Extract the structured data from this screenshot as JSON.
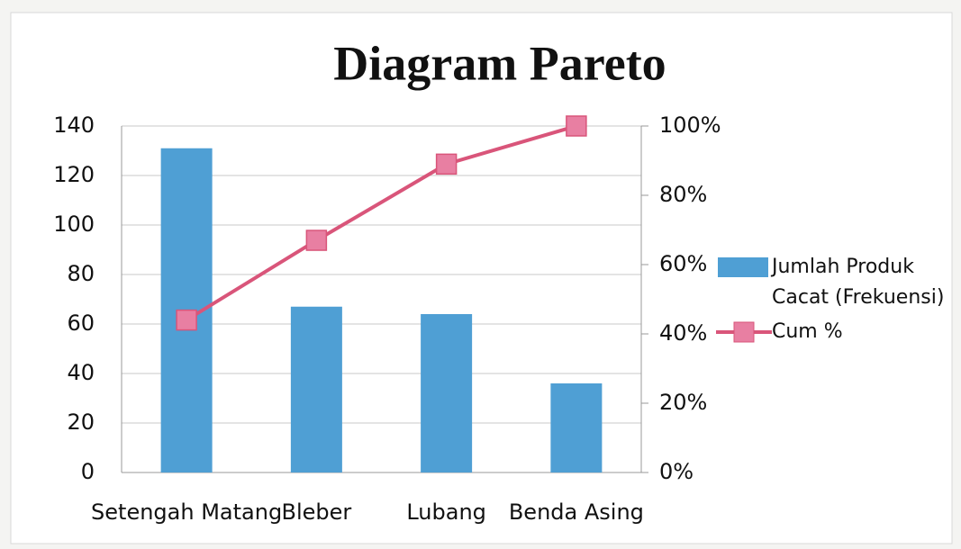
{
  "chart_data": {
    "type": "combo",
    "title": "Diagram Pareto",
    "categories": [
      "Setengah Matang",
      "Bleber",
      "Lubang",
      "Benda Asing"
    ],
    "series": [
      {
        "name": "Jumlah Produk Cacat (Frekuensi)",
        "type": "bar",
        "color": "#4f9fd4",
        "values": [
          131,
          67,
          64,
          36
        ]
      },
      {
        "name": "Cum %",
        "type": "line",
        "axis": "y2",
        "color": "#d9557a",
        "values": [
          44,
          67,
          89,
          100
        ]
      }
    ],
    "ylim": [
      0,
      140
    ],
    "yticks": [
      0,
      20,
      40,
      60,
      80,
      100,
      120,
      140
    ],
    "y2lim": [
      0,
      100
    ],
    "y2ticks": [
      {
        "value": 0,
        "label": "0%"
      },
      {
        "value": 20,
        "label": "20%"
      },
      {
        "value": 40,
        "label": "40%"
      },
      {
        "value": 60,
        "label": "60%"
      },
      {
        "value": 80,
        "label": "80%"
      },
      {
        "value": 100,
        "label": "100%"
      }
    ],
    "grid": true,
    "legend": "right"
  }
}
